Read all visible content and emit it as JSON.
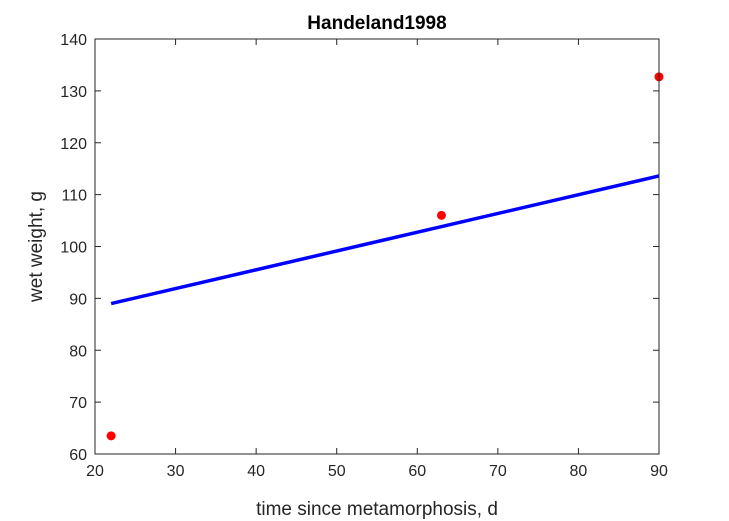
{
  "chart_data": {
    "type": "scatter",
    "title": "Handeland1998",
    "xlabel": "time since metamorphosis, d",
    "ylabel": "wet weight, g",
    "xlim": [
      20,
      90
    ],
    "ylim": [
      60,
      140
    ],
    "xticks": [
      20,
      30,
      40,
      50,
      60,
      70,
      80,
      90
    ],
    "yticks": [
      60,
      70,
      80,
      90,
      100,
      110,
      120,
      130,
      140
    ],
    "grid": false,
    "series": [
      {
        "kind": "scatter",
        "color": "#ff0000",
        "x": [
          22,
          63,
          90
        ],
        "y": [
          63.5,
          106,
          132.7
        ]
      },
      {
        "kind": "line",
        "color": "#0000ff",
        "x": [
          22,
          90
        ],
        "y": [
          89,
          113.6
        ]
      }
    ]
  }
}
